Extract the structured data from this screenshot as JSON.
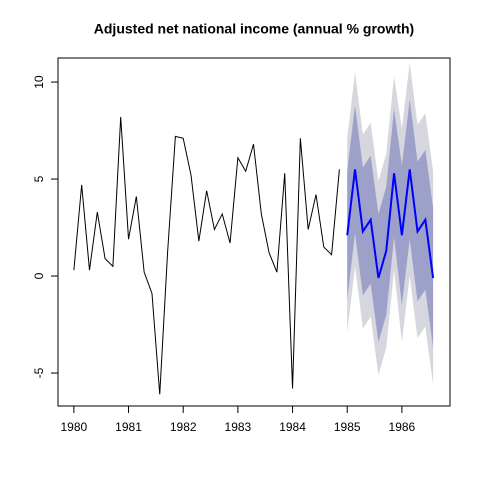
{
  "chart_data": {
    "type": "line",
    "title": "Adjusted net national income (annual % growth)",
    "xlim": [
      1979.71,
      1986.88
    ],
    "ylim": [
      -6.7,
      11.24
    ],
    "xticks": [
      1980,
      1981,
      1982,
      1983,
      1984,
      1985,
      1986
    ],
    "yticks": [
      -5,
      0,
      5,
      10
    ],
    "bands": [
      {
        "color": "#d6d6de",
        "x": [
          1985,
          1985.143,
          1985.286,
          1985.429,
          1985.571,
          1985.714,
          1985.857,
          1986,
          1986.143,
          1986.286,
          1986.429,
          1986.571
        ],
        "lower": [
          -2.9,
          0.5,
          -2.7,
          -2.1,
          -5.1,
          -3.7,
          0.3,
          -3.4,
          0.0,
          -3.2,
          -2.6,
          -5.6
        ],
        "upper": [
          7.1,
          10.5,
          7.3,
          7.9,
          4.9,
          6.3,
          10.3,
          7.6,
          11.0,
          7.8,
          8.4,
          5.4
        ]
      },
      {
        "color": "#9da1c9",
        "x": [
          1985,
          1985.143,
          1985.286,
          1985.429,
          1985.571,
          1985.714,
          1985.857,
          1986,
          1986.143,
          1986.286,
          1986.429,
          1986.571
        ],
        "lower": [
          -1.2,
          2.2,
          -1.0,
          -0.4,
          -3.4,
          -2.0,
          2.0,
          -1.5,
          1.9,
          -1.3,
          -0.7,
          -3.7
        ],
        "upper": [
          5.4,
          8.8,
          5.6,
          6.2,
          3.2,
          4.6,
          8.6,
          5.7,
          9.1,
          5.9,
          6.5,
          3.5
        ]
      }
    ],
    "series": [
      {
        "color": "#000000",
        "width": 1,
        "x": [
          1980,
          1980.143,
          1980.286,
          1980.429,
          1980.571,
          1980.714,
          1980.857,
          1981,
          1981.143,
          1981.286,
          1981.429,
          1981.571,
          1981.714,
          1981.857,
          1982,
          1982.143,
          1982.286,
          1982.429,
          1982.571,
          1982.714,
          1982.857,
          1983,
          1983.143,
          1983.286,
          1983.429,
          1983.571,
          1983.714,
          1983.857,
          1984,
          1984.143,
          1984.286,
          1984.429,
          1984.571,
          1984.714,
          1984.857
        ],
        "values": [
          0.3,
          4.7,
          0.3,
          3.3,
          0.9,
          0.5,
          8.2,
          1.9,
          4.1,
          0.2,
          -0.9,
          -6.1,
          1.2,
          7.2,
          7.1,
          5.2,
          1.8,
          4.4,
          2.4,
          3.2,
          1.7,
          6.1,
          5.4,
          6.8,
          3.2,
          1.2,
          0.2,
          5.3,
          -5.8,
          7.1,
          2.4,
          4.2,
          1.5,
          1.1,
          5.5
        ]
      },
      {
        "color": "#0000ff",
        "width": 2,
        "x": [
          1985,
          1985.143,
          1985.286,
          1985.429,
          1985.571,
          1985.714,
          1985.857,
          1986,
          1986.143,
          1986.286,
          1986.429,
          1986.571
        ],
        "values": [
          2.1,
          5.5,
          2.3,
          2.9,
          -0.1,
          1.3,
          5.3,
          2.1,
          5.5,
          2.3,
          2.9,
          -0.1
        ]
      }
    ]
  }
}
